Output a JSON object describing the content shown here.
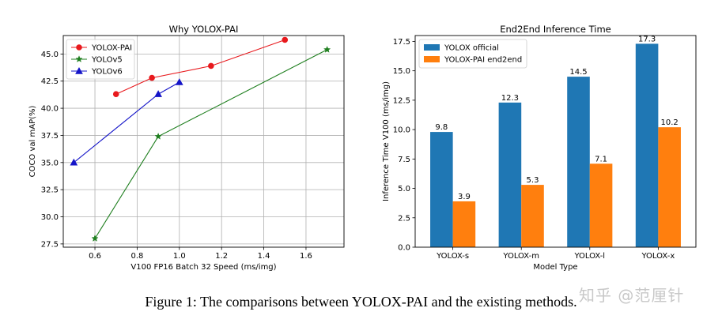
{
  "chart_data": [
    {
      "type": "line",
      "title": "Why YOLOX-PAI",
      "xlabel": "V100 FP16 Batch 32 Speed (ms/img)",
      "ylabel": "COCO val mAP(%)",
      "xlim": [
        0.45,
        1.78
      ],
      "ylim": [
        27.2,
        46.7
      ],
      "xticks": [
        0.6,
        0.8,
        1.0,
        1.2,
        1.4,
        1.6
      ],
      "xtick_labels": [
        "0.6",
        "0.8",
        "1.0",
        "1.2",
        "1.4",
        "1.6"
      ],
      "yticks": [
        27.5,
        30.0,
        32.5,
        35.0,
        37.5,
        40.0,
        42.5,
        45.0
      ],
      "ytick_labels": [
        "27.5",
        "30.0",
        "32.5",
        "35.0",
        "37.5",
        "40.0",
        "42.5",
        "45.0"
      ],
      "grid": true,
      "legend_position": "top-left",
      "series": [
        {
          "name": "YOLOX-PAI",
          "color": "#e8191d",
          "marker": "circle",
          "x": [
            0.7,
            0.87,
            1.15,
            1.5
          ],
          "y": [
            41.3,
            42.8,
            43.9,
            46.3
          ]
        },
        {
          "name": "YOLOv5",
          "color": "#1f7f1f",
          "marker": "star",
          "x": [
            0.6,
            0.9,
            1.7
          ],
          "y": [
            28.0,
            37.4,
            45.4
          ]
        },
        {
          "name": "YOLOv6",
          "color": "#1414c8",
          "marker": "triangle",
          "x": [
            0.5,
            0.9,
            1.0
          ],
          "y": [
            35.0,
            41.3,
            42.4
          ]
        }
      ]
    },
    {
      "type": "bar",
      "title": "End2End Inference Time",
      "xlabel": "Model Type",
      "ylabel": "Inference Time V100 (ms/img)",
      "ylim": [
        0,
        18
      ],
      "yticks": [
        0.0,
        2.5,
        5.0,
        7.5,
        10.0,
        12.5,
        15.0,
        17.5
      ],
      "ytick_labels": [
        "0.0",
        "2.5",
        "5.0",
        "7.5",
        "10.0",
        "12.5",
        "15.0",
        "17.5"
      ],
      "categories": [
        "YOLOX-s",
        "YOLOX-m",
        "YOLOX-l",
        "YOLOX-x"
      ],
      "grid": false,
      "legend_position": "top-left",
      "series": [
        {
          "name": "YOLOX official",
          "color": "#1f77b4",
          "values": [
            9.8,
            12.3,
            14.5,
            17.3
          ],
          "labels": [
            "9.8",
            "12.3",
            "14.5",
            "17.3"
          ]
        },
        {
          "name": "YOLOX-PAI end2end",
          "color": "#ff7f0e",
          "values": [
            3.9,
            5.3,
            7.1,
            10.2
          ],
          "labels": [
            "3.9",
            "5.3",
            "7.1",
            "10.2"
          ]
        }
      ]
    }
  ],
  "caption": "Figure 1: The comparisons between YOLOX-PAI and the existing methods.",
  "watermark": "知乎 @范厘针"
}
